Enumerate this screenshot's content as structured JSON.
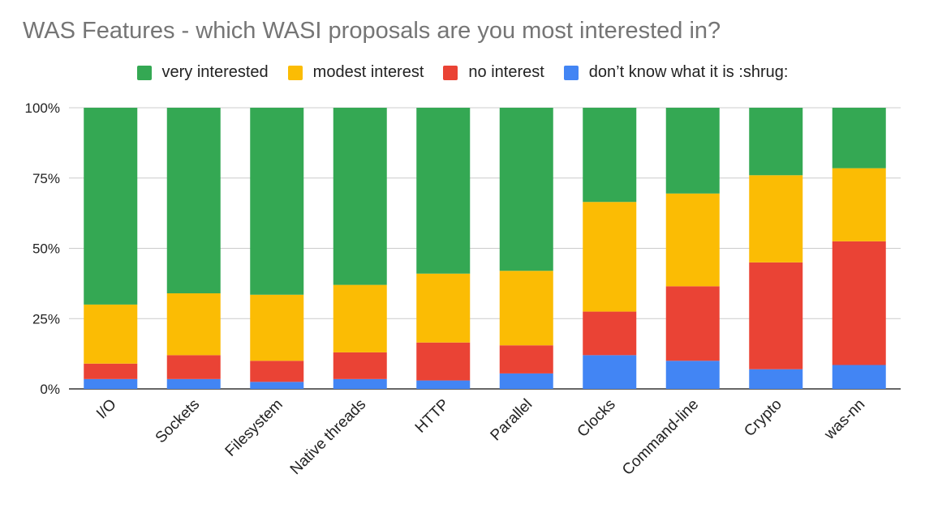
{
  "chart_data": {
    "type": "bar",
    "stacked": true,
    "normalized": true,
    "title": "WAS Features - which WASI proposals are you most interested in?",
    "legend_position": "top",
    "grid": true,
    "categories": [
      "I/O",
      "Sockets",
      "Filesystem",
      "Native threads",
      "HTTP",
      "Parallel",
      "Clocks",
      "Command-line",
      "Crypto",
      "was-nn"
    ],
    "series": [
      {
        "name": "don’t know what it is :shrug:",
        "color": "#4285f4",
        "values": [
          3.5,
          3.5,
          2.5,
          3.5,
          3,
          5.5,
          12,
          10,
          7,
          8.5
        ]
      },
      {
        "name": "no interest",
        "color": "#ea4335",
        "values": [
          5.5,
          8.5,
          7.5,
          9.5,
          13.5,
          10,
          15.5,
          26.5,
          38,
          44
        ]
      },
      {
        "name": "modest interest",
        "color": "#fbbc04",
        "values": [
          21,
          22,
          23.5,
          24,
          24.5,
          26.5,
          39,
          33,
          31,
          26
        ]
      },
      {
        "name": "very interested",
        "color": "#34a853",
        "values": [
          70,
          66,
          66.5,
          63,
          59,
          58,
          33.5,
          30.5,
          24,
          21.5
        ]
      }
    ],
    "legend_order": [
      3,
      2,
      1,
      0
    ],
    "ylim": [
      0,
      100
    ],
    "yticks": [
      "0%",
      "25%",
      "50%",
      "75%",
      "100%"
    ],
    "ytick_values": [
      0,
      25,
      50,
      75,
      100
    ]
  }
}
